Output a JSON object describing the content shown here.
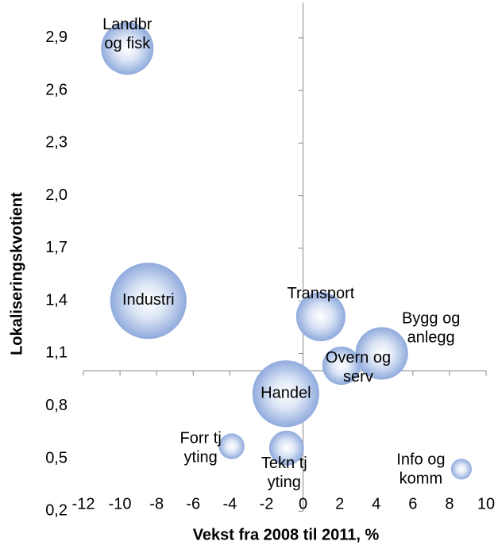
{
  "chart_data": {
    "type": "bubble",
    "x_label": "Vekst fra 2008 til 2011, %",
    "y_label": "Lokaliseringskvotient",
    "categories": [
      [
        "Landbr",
        "og fisk"
      ],
      [
        "Industri"
      ],
      [
        "Transport"
      ],
      [
        "Bygg og",
        "anlegg"
      ],
      [
        "Overn og",
        "serv"
      ],
      [
        "Handel"
      ],
      [
        "Forr tj",
        "yting"
      ],
      [
        "Tekn tj",
        "yting"
      ],
      [
        "Info og",
        "komm"
      ]
    ],
    "x": [
      -9.6,
      -8.45,
      0.97,
      4.3,
      2.1,
      -0.94,
      -3.9,
      -0.9,
      8.65
    ],
    "values": [
      2.84,
      1.4,
      1.31,
      1.1,
      1.03,
      0.87,
      0.57,
      0.56,
      0.44
    ],
    "sizes": [
      109,
      230,
      96,
      109,
      58,
      176,
      26,
      48,
      17
    ],
    "color": "#8faadc",
    "xlim": [
      -12,
      10
    ],
    "xticks": [
      -12,
      -10,
      -8,
      -6,
      -4,
      -2,
      0,
      2,
      4,
      6,
      8,
      10
    ],
    "ylim": [
      0.2,
      3.1
    ],
    "yticks": [
      {
        "value": 0.2,
        "label": "0,2"
      },
      {
        "value": 0.5,
        "label": "0,5"
      },
      {
        "value": 0.8,
        "label": "0,8"
      },
      {
        "value": 1.1,
        "label": "1,1"
      },
      {
        "value": 1.4,
        "label": "1,4"
      },
      {
        "value": 1.7,
        "label": "1,7"
      },
      {
        "value": 2.0,
        "label": "2,0"
      },
      {
        "value": 2.3,
        "label": "2,3"
      },
      {
        "value": 2.6,
        "label": "2,6"
      },
      {
        "value": 2.9,
        "label": "2,9"
      }
    ],
    "x_cross": 0,
    "y_cross": 1.0
  }
}
